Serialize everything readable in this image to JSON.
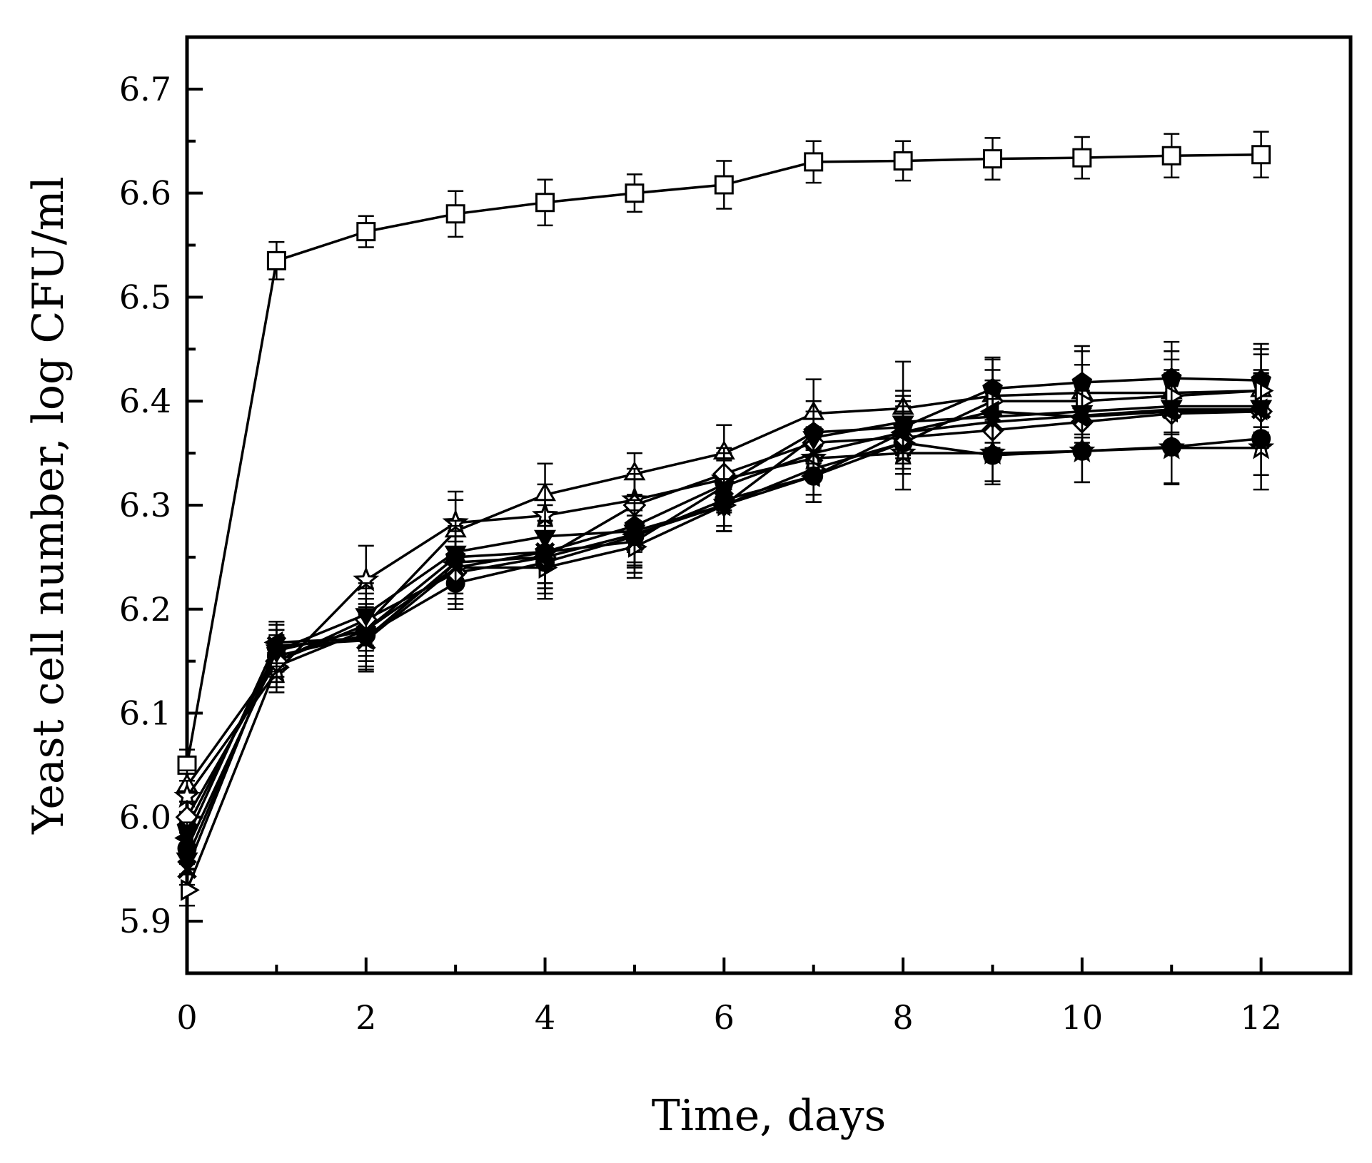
{
  "chart_data": {
    "type": "line",
    "title": "",
    "xlabel": "Time, days",
    "ylabel": "Yeast cell number, log CFU/ml",
    "xlim": [
      0,
      13
    ],
    "ylim": [
      5.85,
      6.75
    ],
    "xticks": [
      0,
      2,
      4,
      6,
      8,
      10,
      12
    ],
    "xtick_labels": [
      "0",
      "2",
      "4",
      "6",
      "8",
      "10",
      "12"
    ],
    "yticks": [
      5.9,
      6.0,
      6.1,
      6.2,
      6.3,
      6.4,
      6.5,
      6.6,
      6.7
    ],
    "ytick_labels": [
      "5.9",
      "6.0",
      "6.1",
      "6.2",
      "6.3",
      "6.4",
      "6.5",
      "6.6",
      "6.7"
    ],
    "grid": false,
    "legend": "none",
    "x": [
      0,
      1,
      2,
      3,
      4,
      5,
      6,
      7,
      8,
      9,
      10,
      11,
      12
    ],
    "series": [
      {
        "name": "open square",
        "marker": "square",
        "filled": false,
        "values": [
          6.05,
          6.535,
          6.563,
          6.58,
          6.591,
          6.6,
          6.608,
          6.63,
          6.631,
          6.633,
          6.634,
          6.636,
          6.637
        ],
        "errors": [
          0.015,
          0.018,
          0.015,
          0.022,
          0.022,
          0.018,
          0.023,
          0.02,
          0.019,
          0.02,
          0.02,
          0.021,
          0.022
        ]
      },
      {
        "name": "open triangle up",
        "marker": "triangle-up",
        "filled": false,
        "values": [
          6.03,
          6.15,
          6.185,
          6.275,
          6.31,
          6.33,
          6.35,
          6.388,
          6.393,
          6.405,
          6.408,
          6.408,
          6.41
        ],
        "errors": [
          0.015,
          0.02,
          0.03,
          0.03,
          0.03,
          0.02,
          0.027,
          0.033,
          0.045,
          0.035,
          0.04,
          0.04,
          0.04
        ]
      },
      {
        "name": "open star",
        "marker": "star",
        "filled": false,
        "values": [
          6.02,
          6.14,
          6.228,
          6.283,
          6.29,
          6.305,
          6.325,
          6.345,
          6.35,
          6.35,
          6.352,
          6.355,
          6.355
        ],
        "errors": [
          0.015,
          0.02,
          0.033,
          0.03,
          0.03,
          0.03,
          0.025,
          0.02,
          0.035,
          0.03,
          0.03,
          0.035,
          0.04
        ]
      },
      {
        "name": "filled pentagon",
        "marker": "pentagon",
        "filled": true,
        "values": [
          5.99,
          6.16,
          6.18,
          6.25,
          6.255,
          6.28,
          6.32,
          6.37,
          6.375,
          6.412,
          6.418,
          6.422,
          6.42
        ],
        "errors": [
          0.015,
          0.02,
          0.03,
          0.03,
          0.03,
          0.025,
          0.025,
          0.03,
          0.03,
          0.03,
          0.035,
          0.035,
          0.035
        ]
      },
      {
        "name": "open right triangle",
        "marker": "triangle-right",
        "filled": false,
        "values": [
          5.93,
          6.145,
          6.18,
          6.24,
          6.24,
          6.26,
          6.3,
          6.335,
          6.36,
          6.4,
          6.4,
          6.405,
          6.41
        ],
        "errors": [
          0.015,
          0.02,
          0.03,
          0.03,
          0.03,
          0.03,
          0.025,
          0.025,
          0.03,
          0.03,
          0.035,
          0.035,
          0.035
        ]
      },
      {
        "name": "filled circle",
        "marker": "circle",
        "filled": true,
        "values": [
          5.97,
          6.155,
          6.175,
          6.225,
          6.245,
          6.27,
          6.305,
          6.328,
          6.36,
          6.348,
          6.352,
          6.356,
          6.364
        ],
        "errors": [
          0.015,
          0.02,
          0.03,
          0.025,
          0.03,
          0.03,
          0.025,
          0.025,
          0.03,
          0.025,
          0.03,
          0.035,
          0.035
        ]
      },
      {
        "name": "open diamond",
        "marker": "diamond",
        "filled": false,
        "values": [
          6.0,
          6.15,
          6.19,
          6.235,
          6.25,
          6.3,
          6.33,
          6.36,
          6.365,
          6.372,
          6.38,
          6.388,
          6.39
        ],
        "errors": [
          0.015,
          0.02,
          0.03,
          0.03,
          0.03,
          0.03,
          0.025,
          0.03,
          0.03,
          0.03,
          0.03,
          0.035,
          0.035
        ]
      },
      {
        "name": "filled triangle down",
        "marker": "triangle-down",
        "filled": true,
        "values": [
          5.96,
          6.16,
          6.195,
          6.255,
          6.27,
          6.275,
          6.3,
          6.365,
          6.38,
          6.385,
          6.39,
          6.395,
          6.395
        ],
        "errors": [
          0.015,
          0.02,
          0.03,
          0.03,
          0.03,
          0.03,
          0.025,
          0.025,
          0.03,
          0.03,
          0.03,
          0.035,
          0.035
        ]
      },
      {
        "name": "filled left triangle",
        "marker": "triangle-left",
        "filled": true,
        "values": [
          5.98,
          6.168,
          6.172,
          6.245,
          6.25,
          6.272,
          6.3,
          6.328,
          6.37,
          6.39,
          6.385,
          6.39,
          6.392
        ],
        "errors": [
          0.015,
          0.02,
          0.03,
          0.03,
          0.03,
          0.03,
          0.025,
          0.025,
          0.03,
          0.03,
          0.03,
          0.035,
          0.035
        ]
      },
      {
        "name": "cross",
        "marker": "cross",
        "filled": false,
        "values": [
          5.95,
          6.165,
          6.17,
          6.24,
          6.255,
          6.265,
          6.318,
          6.35,
          6.37,
          6.38,
          6.386,
          6.392,
          6.392
        ],
        "errors": [
          0.015,
          0.02,
          0.03,
          0.03,
          0.03,
          0.03,
          0.025,
          0.025,
          0.03,
          0.03,
          0.03,
          0.035,
          0.035
        ]
      }
    ]
  }
}
